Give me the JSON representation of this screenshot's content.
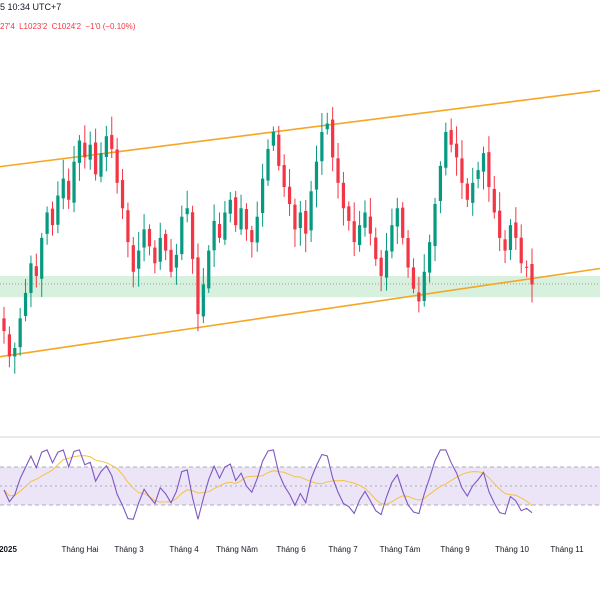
{
  "header": {
    "time_text": "5 10:34 UTC+7"
  },
  "ohlc": {
    "h_fragment": "27'4",
    "low": "L1023'2",
    "close": "C1024'2",
    "change": "−1'0 (−0.10%)"
  },
  "colors": {
    "up": "#089981",
    "down": "#f23645",
    "channel": "#f5a623",
    "zone": "#c8ebd0",
    "rsi": "#7e57c2",
    "rsi_ma": "#f5c242",
    "rsi_band": "#ece5f7"
  },
  "chart_data": [
    {
      "type": "candlestick",
      "title": "",
      "x_labels": [
        "2025",
        "Tháng Hai",
        "Tháng 3",
        "Tháng 4",
        "Tháng Năm",
        "Tháng 6",
        "Tháng 7",
        "Tháng Tám",
        "Tháng 9",
        "Tháng 10",
        "Tháng 11"
      ],
      "last_close": 1024.25,
      "upper_trendline": {
        "start": [
          "2024-12-01",
          1078
        ],
        "end": [
          "2025-11-20",
          1116
        ]
      },
      "lower_trendline": {
        "start": [
          "2024-12-01",
          988
        ],
        "end": [
          "2025-11-20",
          1032
        ]
      },
      "support_zone": [
        1018,
        1028
      ],
      "closes_series": [
        1002,
        990,
        994,
        1008,
        1020,
        1034,
        1028,
        1046,
        1058,
        1052,
        1066,
        1074,
        1064,
        1082,
        1092,
        1084,
        1090,
        1076,
        1086,
        1094,
        1088,
        1072,
        1060,
        1044,
        1030,
        1040,
        1050,
        1042,
        1034,
        1046,
        1040,
        1030,
        1038,
        1056,
        1060,
        1036,
        1010,
        1024,
        1040,
        1054,
        1046,
        1058,
        1064,
        1052,
        1060,
        1050,
        1044,
        1056,
        1074,
        1088,
        1096,
        1080,
        1070,
        1062,
        1050,
        1058,
        1048,
        1068,
        1082,
        1096,
        1100,
        1084,
        1072,
        1060,
        1054,
        1044,
        1052,
        1058,
        1048,
        1036,
        1028,
        1040,
        1052,
        1060,
        1046,
        1032,
        1022,
        1016,
        1030,
        1044,
        1062,
        1080,
        1096,
        1090,
        1084,
        1072,
        1064,
        1072,
        1078,
        1086,
        1070,
        1058,
        1046,
        1040,
        1052,
        1046,
        1034,
        1032,
        1024
      ]
    },
    {
      "type": "line",
      "title": "",
      "series": [
        {},
        {}
      ],
      "levels": [
        70,
        50,
        30
      ],
      "ylim": [
        10,
        90
      ]
    }
  ]
}
